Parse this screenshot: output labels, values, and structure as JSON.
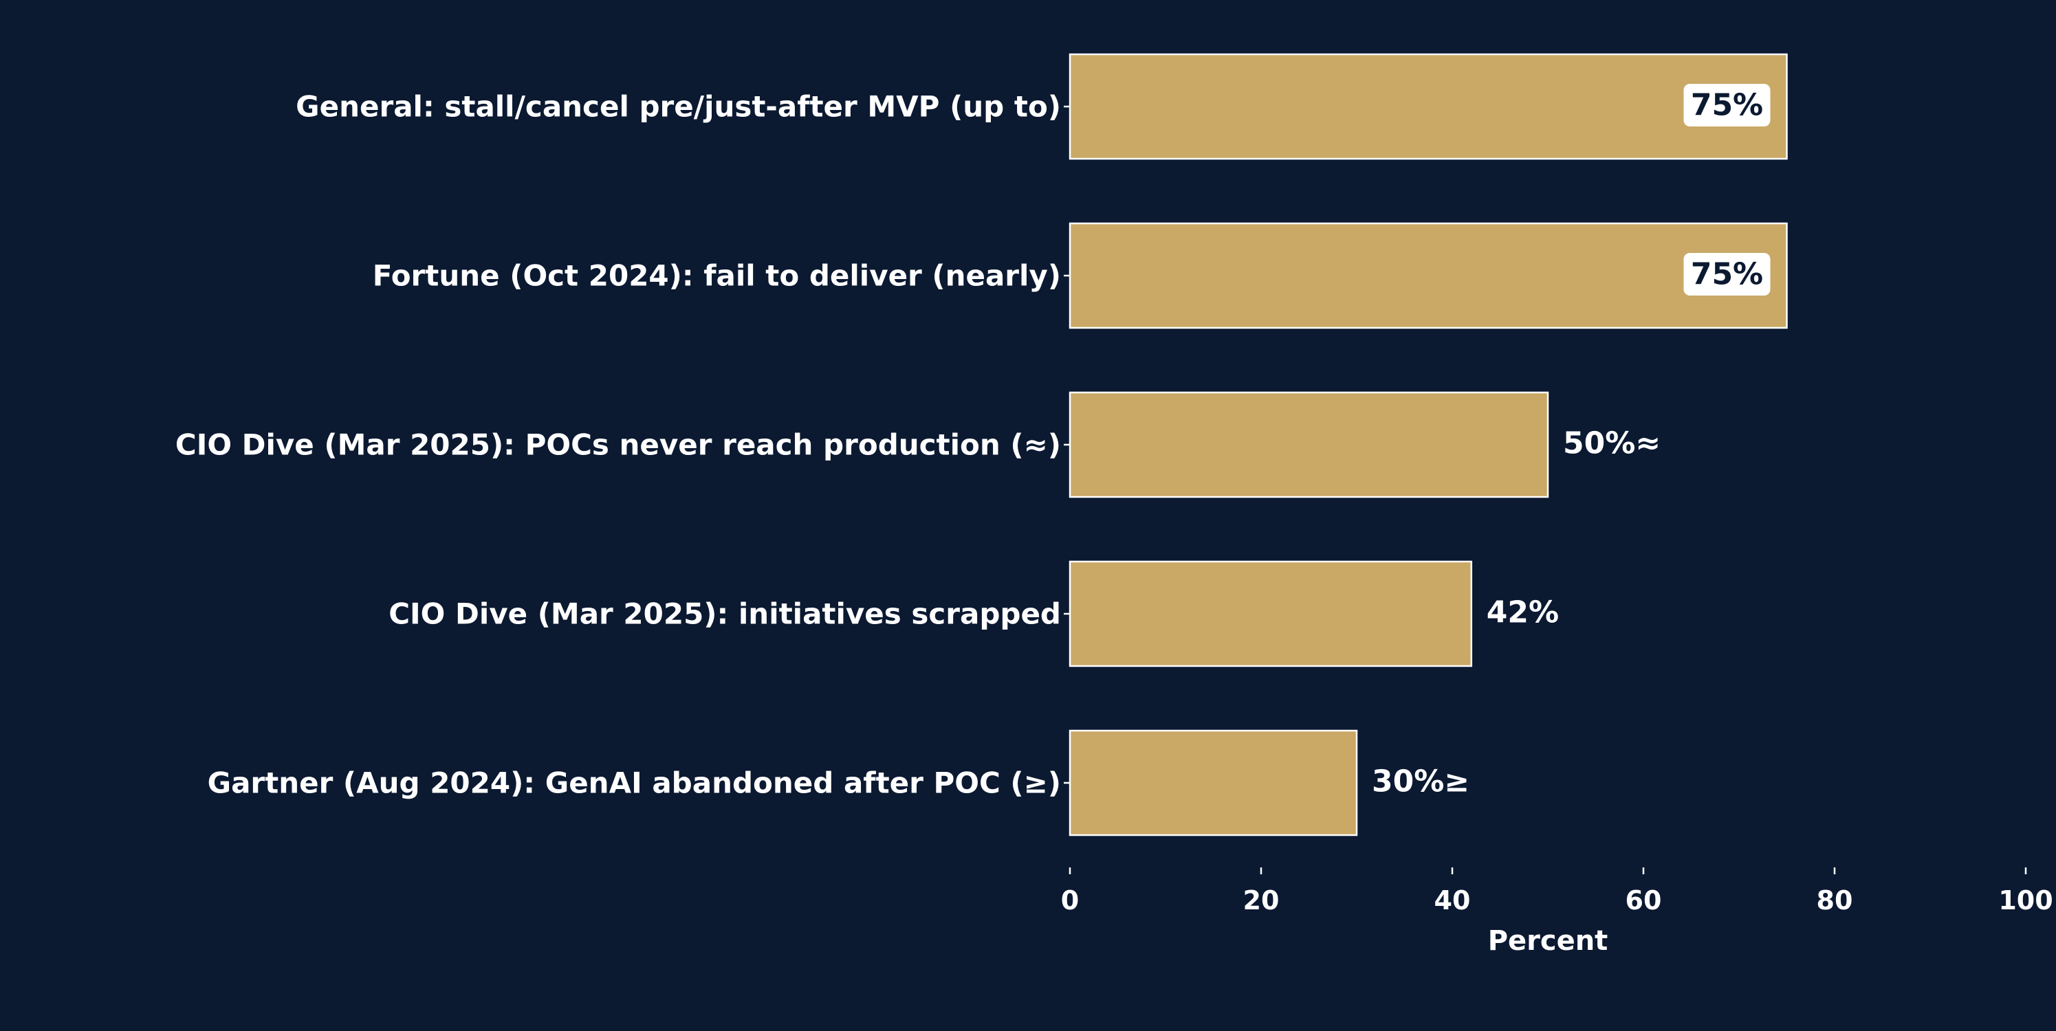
{
  "chart_data": {
    "type": "bar",
    "orientation": "horizontal",
    "categories": [
      "General: stall/cancel pre/just-after MVP (up to)",
      "Fortune (Oct 2024): fail to deliver (nearly)",
      "CIO Dive (Mar 2025): POCs never reach production (≈)",
      "CIO Dive (Mar 2025): initiatives scrapped",
      "Gartner (Aug 2024): GenAI abandoned after POC (≥)"
    ],
    "values": [
      75,
      75,
      50,
      42,
      30
    ],
    "data_labels": [
      "75%",
      "75%",
      "50%≈",
      "42%",
      "30%≥"
    ],
    "inside_label": [
      true,
      true,
      false,
      false,
      false
    ],
    "xlabel": "Percent",
    "ylabel": "",
    "title": "",
    "xlim": [
      0,
      100
    ],
    "xticks": [
      0,
      20,
      40,
      60,
      80,
      100
    ],
    "xtick_labels": [
      "0",
      "20",
      "40",
      "60",
      "80",
      "100"
    ],
    "grid": false,
    "colors": {
      "background": "#0b1931",
      "bar_fill": "#caa866",
      "bar_edge": "#ffffff",
      "text": "#ffffff",
      "inside_label_box": "#ffffff",
      "inside_label_text": "#0b1931"
    }
  }
}
